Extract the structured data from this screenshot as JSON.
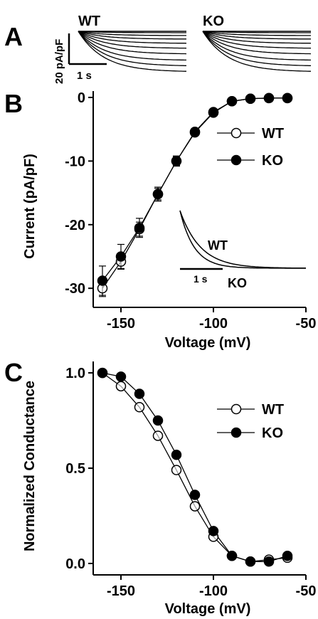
{
  "panel_labels": {
    "a": "A",
    "b": "B",
    "c": "C"
  },
  "panel_a": {
    "wt_label": "WT",
    "ko_label": "KO",
    "scale_y_label": "20 pA/pF",
    "scale_x_label": "1 s"
  },
  "chart_data": [
    {
      "type": "scatter",
      "panel": "B",
      "xlabel": "Voltage (mV)",
      "ylabel": "Current (pA/pF)",
      "xlim": [
        -165,
        -50
      ],
      "ylim": [
        -33,
        1
      ],
      "xticks": [
        -150,
        -100,
        -50
      ],
      "xtick_labels": [
        "-150",
        "-100",
        "-50"
      ],
      "yticks": [
        0,
        -10,
        -20,
        -30
      ],
      "ytick_labels": [
        "0",
        "-10",
        "-20",
        "-30"
      ],
      "legend_position": "right",
      "series": [
        {
          "name": "WT",
          "marker": "open-circle",
          "x": [
            -160,
            -150,
            -140,
            -130,
            -120,
            -110,
            -100,
            -90,
            -80,
            -70,
            -60
          ],
          "y": [
            -30.0,
            -25.8,
            -20.7,
            -15.2,
            -10.0,
            -5.5,
            -2.4,
            -0.6,
            -0.2,
            -0.1,
            -0.1
          ],
          "err": [
            1.3,
            1.2,
            1.1,
            0.9,
            0.7,
            0.4,
            0.3,
            0.2,
            0.1,
            0.1,
            0.1
          ]
        },
        {
          "name": "KO",
          "marker": "filled-circle",
          "x": [
            -160,
            -150,
            -140,
            -130,
            -120,
            -110,
            -100,
            -90,
            -80,
            -70,
            -60
          ],
          "y": [
            -28.8,
            -25.0,
            -20.5,
            -15.2,
            -10.0,
            -5.4,
            -2.3,
            -0.6,
            -0.2,
            -0.1,
            -0.1
          ],
          "err": [
            2.3,
            1.9,
            1.5,
            1.1,
            0.8,
            0.5,
            0.3,
            0.2,
            0.1,
            0.1,
            0.1
          ]
        }
      ],
      "inset": {
        "label_wt": "WT",
        "label_ko": "KO",
        "scale_label": "1 s"
      }
    },
    {
      "type": "scatter",
      "panel": "C",
      "xlabel": "Voltage (mV)",
      "ylabel": "Normalized Conductance",
      "xlim": [
        -165,
        -50
      ],
      "ylim": [
        -0.06,
        1.06
      ],
      "xticks": [
        -150,
        -100,
        -50
      ],
      "xtick_labels": [
        "-150",
        "-100",
        "-50"
      ],
      "yticks": [
        0.0,
        0.5,
        1.0
      ],
      "ytick_labels": [
        "0.0",
        "0.5",
        "1.0"
      ],
      "legend_position": "right",
      "series": [
        {
          "name": "WT",
          "marker": "open-circle",
          "x": [
            -160,
            -150,
            -140,
            -130,
            -120,
            -110,
            -100,
            -90,
            -80,
            -70,
            -60
          ],
          "y": [
            1.0,
            0.93,
            0.82,
            0.67,
            0.49,
            0.3,
            0.14,
            0.04,
            0.01,
            0.02,
            0.03
          ]
        },
        {
          "name": "KO",
          "marker": "filled-circle",
          "x": [
            -160,
            -150,
            -140,
            -130,
            -120,
            -110,
            -100,
            -90,
            -80,
            -70,
            -60
          ],
          "y": [
            1.0,
            0.98,
            0.89,
            0.75,
            0.57,
            0.36,
            0.17,
            0.04,
            0.01,
            0.01,
            0.04
          ]
        }
      ]
    }
  ]
}
